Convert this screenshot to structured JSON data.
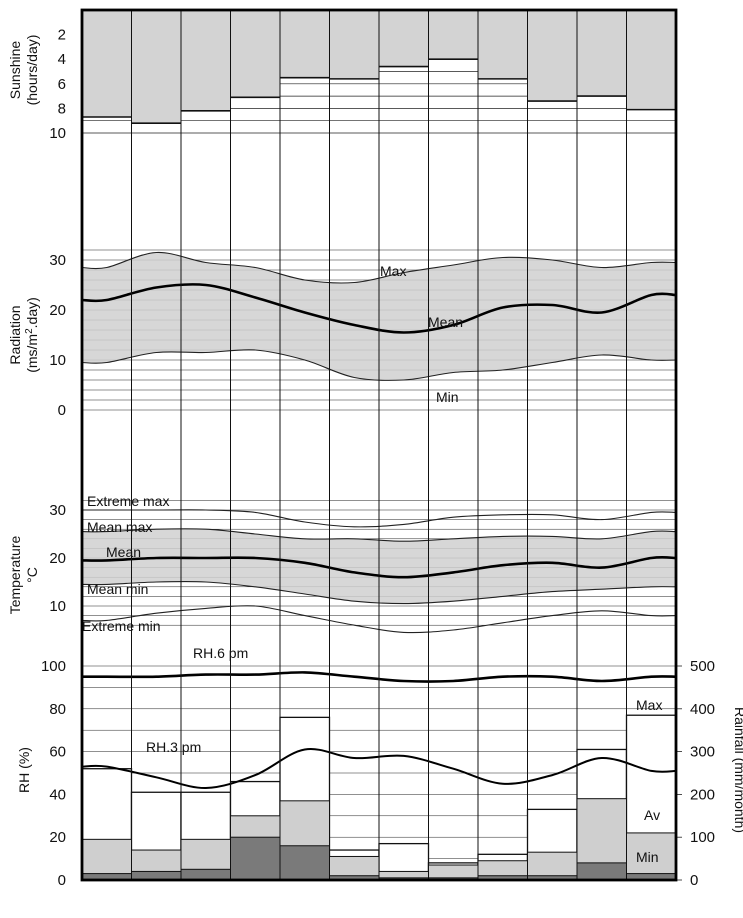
{
  "chart_data": [
    {
      "type": "bar",
      "panel": "sunshine",
      "ylabel_line1": "Sunshine",
      "ylabel_line2": "(hours/day)",
      "ylim": [
        0,
        10
      ],
      "yticks": [
        "2",
        "4",
        "6",
        "8",
        "10"
      ],
      "y_inverted": true,
      "values": [
        8.7,
        9.2,
        8.2,
        7.1,
        5.5,
        5.6,
        4.6,
        4.0,
        5.6,
        7.4,
        7.0,
        8.1
      ]
    },
    {
      "type": "area",
      "panel": "radiation",
      "ylabel_line1": "Radiation",
      "ylabel_line2": "(ms/m",
      "ylabel_sup": "2",
      "ylabel_line2_end": ".day)",
      "ylim": [
        0,
        30
      ],
      "yticks": [
        "0",
        "10",
        "20",
        "30"
      ],
      "series": [
        {
          "name": "Max",
          "values": [
            28.5,
            31.5,
            29.5,
            28.5,
            26.0,
            25.5,
            27.5,
            29.0,
            30.5,
            30.0,
            28.5,
            29.5
          ]
        },
        {
          "name": "Mean",
          "values": [
            22.0,
            24.5,
            25.0,
            22.5,
            19.5,
            17.0,
            15.5,
            17.0,
            20.5,
            21.0,
            19.5,
            23.0
          ]
        },
        {
          "name": "Min",
          "values": [
            9.5,
            11.5,
            11.5,
            12.0,
            10.0,
            6.5,
            6.0,
            7.5,
            8.0,
            9.5,
            11.0,
            10.0
          ]
        }
      ]
    },
    {
      "type": "area",
      "panel": "temperature",
      "ylabel_line1": "Temperature",
      "ylabel_line2": "°C",
      "ylim": [
        5,
        32
      ],
      "yticks": [
        "10",
        "20",
        "30"
      ],
      "series": [
        {
          "name": "Extreme max",
          "values": [
            30.0,
            30.0,
            30.0,
            29.5,
            27.5,
            26.5,
            27.0,
            28.5,
            29.0,
            29.0,
            28.0,
            29.5
          ]
        },
        {
          "name": "Mean max",
          "values": [
            25.5,
            26.0,
            26.0,
            25.0,
            24.0,
            24.0,
            23.5,
            24.0,
            24.5,
            24.5,
            24.0,
            25.5
          ]
        },
        {
          "name": "Mean",
          "values": [
            19.5,
            20.0,
            20.0,
            20.0,
            19.0,
            17.0,
            16.0,
            17.0,
            18.5,
            19.0,
            18.0,
            20.0
          ]
        },
        {
          "name": "Mean min",
          "values": [
            14.5,
            15.0,
            15.0,
            14.0,
            12.5,
            11.0,
            10.5,
            11.0,
            12.0,
            13.0,
            13.5,
            14.0
          ]
        },
        {
          "name": "Extreme min",
          "values": [
            7.0,
            8.5,
            9.5,
            10.0,
            8.0,
            6.0,
            4.5,
            5.0,
            6.5,
            8.0,
            9.0,
            8.0
          ]
        }
      ]
    },
    {
      "type": "bar",
      "panel": "rh-rainfall",
      "ylabel": "RH (%)",
      "ylim": [
        0,
        100
      ],
      "yticks": [
        "0",
        "20",
        "40",
        "60",
        "80",
        "100"
      ],
      "y2label": "Rainfall (mm/month)",
      "y2lim": [
        0,
        500
      ],
      "y2ticks": [
        "0",
        "100",
        "200",
        "300",
        "400",
        "500"
      ],
      "rainfall_max": [
        260,
        205,
        205,
        230,
        380,
        70,
        85,
        40,
        60,
        165,
        305,
        385
      ],
      "rainfall_avg": [
        95,
        70,
        95,
        150,
        185,
        55,
        20,
        35,
        45,
        65,
        190,
        110
      ],
      "rainfall_min": [
        15,
        20,
        25,
        100,
        80,
        10,
        5,
        5,
        10,
        10,
        40,
        15
      ],
      "series": [
        {
          "name": "RH.6 pm",
          "values": [
            95,
            95,
            96,
            96,
            97,
            95,
            93,
            93,
            95,
            95,
            93,
            95
          ]
        },
        {
          "name": "RH.3 pm",
          "values": [
            53,
            48,
            43,
            49,
            61,
            57,
            58,
            52,
            45,
            49,
            57,
            51
          ]
        }
      ],
      "labels": {
        "max": "Max",
        "av": "Av",
        "min": "Min"
      }
    }
  ]
}
